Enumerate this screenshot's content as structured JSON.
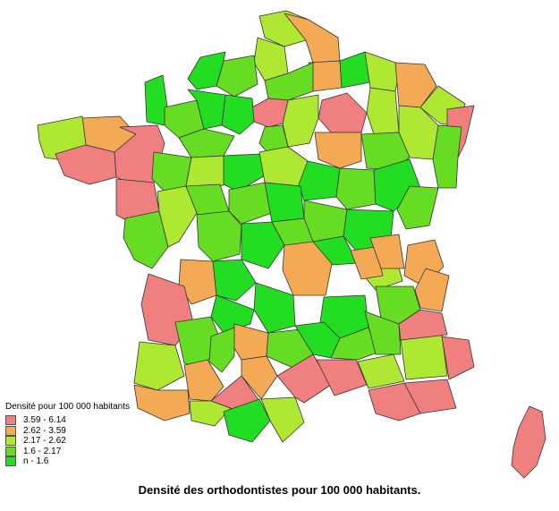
{
  "map": {
    "caption": "Densité des orthodontistes pour 100 000 habitants.",
    "legend": {
      "title": "Densité pour 100 000 habitants",
      "classes": [
        {
          "label": "3.59 - 6.14",
          "color": "#f08080"
        },
        {
          "label": "2.62 - 3.59",
          "color": "#f4aa55"
        },
        {
          "label": "2.17 - 2.62",
          "color": "#aee832"
        },
        {
          "label": "1.6 - 2.17",
          "color": "#66dd22"
        },
        {
          "label": "n - 1.6",
          "color": "#22dd22"
        }
      ],
      "placement": "bottom-left"
    },
    "border_color": "#333333",
    "background_color": "#ffffff"
  }
}
